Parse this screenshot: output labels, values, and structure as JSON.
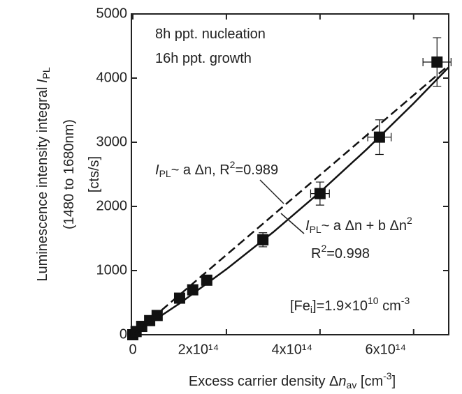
{
  "chart_data": {
    "type": "scatter",
    "y_label": [
      [
        {
          "t": "Luminescence intensity integral "
        },
        {
          "t": "I",
          "style": "italic"
        },
        {
          "t": "PL",
          "style": "sub"
        }
      ],
      [
        {
          "t": "(1480 to 1680nm)"
        }
      ],
      [
        {
          "t": "[cts/s]"
        }
      ]
    ],
    "x_label": [
      {
        "t": "Excess carrier density Δ"
      },
      {
        "t": "n",
        "style": "italic"
      },
      {
        "t": "av",
        "style": "sub"
      },
      {
        "t": " [cm"
      },
      {
        "t": "-3",
        "style": "sup"
      },
      {
        "t": "]"
      }
    ],
    "annotations": [
      [
        {
          "t": "8h ppt. nucleation"
        }
      ],
      [
        {
          "t": "16h ppt. growth"
        }
      ],
      [
        {
          "t": "I",
          "style": "italic"
        },
        {
          "t": "PL",
          "style": "sub"
        },
        {
          "t": "~ a Δn, R"
        },
        {
          "t": "2",
          "style": "sup"
        },
        {
          "t": "=0.989"
        }
      ],
      [
        {
          "t": "I",
          "style": "italic"
        },
        {
          "t": "PL",
          "style": "sub"
        },
        {
          "t": "~ a Δn + b Δn"
        },
        {
          "t": "2",
          "style": "sup"
        }
      ],
      [
        {
          "t": "R"
        },
        {
          "t": "2",
          "style": "sup"
        },
        {
          "t": "=0.998"
        }
      ],
      [
        {
          "t": "[Fe"
        },
        {
          "t": "i",
          "style": "sub"
        },
        {
          "t": "]=1.9×10"
        },
        {
          "t": "10",
          "style": "sup"
        },
        {
          "t": " cm"
        },
        {
          "t": "-3",
          "style": "sup"
        }
      ]
    ],
    "xlim": [
      -3000000000000,
      675000000000000
    ],
    "ylim": [
      0,
      5000
    ],
    "xticks": [
      0,
      {
        "value": 200000000000000,
        "label": "2x10¹⁴"
      },
      {
        "value": 400000000000000,
        "label": "4x10¹⁴"
      },
      {
        "value": 600000000000000,
        "label": "6x10¹⁴"
      }
    ],
    "yticks": [
      0,
      1000,
      2000,
      3000,
      4000,
      5000
    ],
    "series": [
      {
        "kind": "points",
        "color": "#111111",
        "x": [
          0,
          7000000000000,
          19000000000000,
          36000000000000,
          52000000000000,
          100000000000000,
          128000000000000,
          158000000000000,
          278000000000000,
          400000000000000,
          527000000000000,
          650000000000000
        ],
        "values": [
          0,
          50,
          130,
          220,
          300,
          570,
          700,
          850,
          1480,
          2200,
          3080,
          4250
        ],
        "yerr": [
          null,
          null,
          null,
          null,
          null,
          null,
          null,
          null,
          110,
          180,
          270,
          380
        ],
        "xerr": [
          null,
          null,
          null,
          null,
          null,
          null,
          null,
          null,
          null,
          20000000000000,
          25000000000000,
          30000000000000
        ]
      },
      {
        "kind": "line",
        "dash": true,
        "color": "#111111",
        "x": [
          0,
          675000000000000
        ],
        "values": [
          0,
          4200
        ]
      },
      {
        "kind": "line",
        "dash": false,
        "color": "#111111",
        "x": [
          0,
          100000000000000,
          200000000000000,
          300000000000000,
          400000000000000,
          500000000000000,
          600000000000000,
          675000000000000
        ],
        "values": [
          0,
          488,
          1021,
          1599,
          2223,
          2892,
          3606,
          4170
        ]
      }
    ]
  }
}
